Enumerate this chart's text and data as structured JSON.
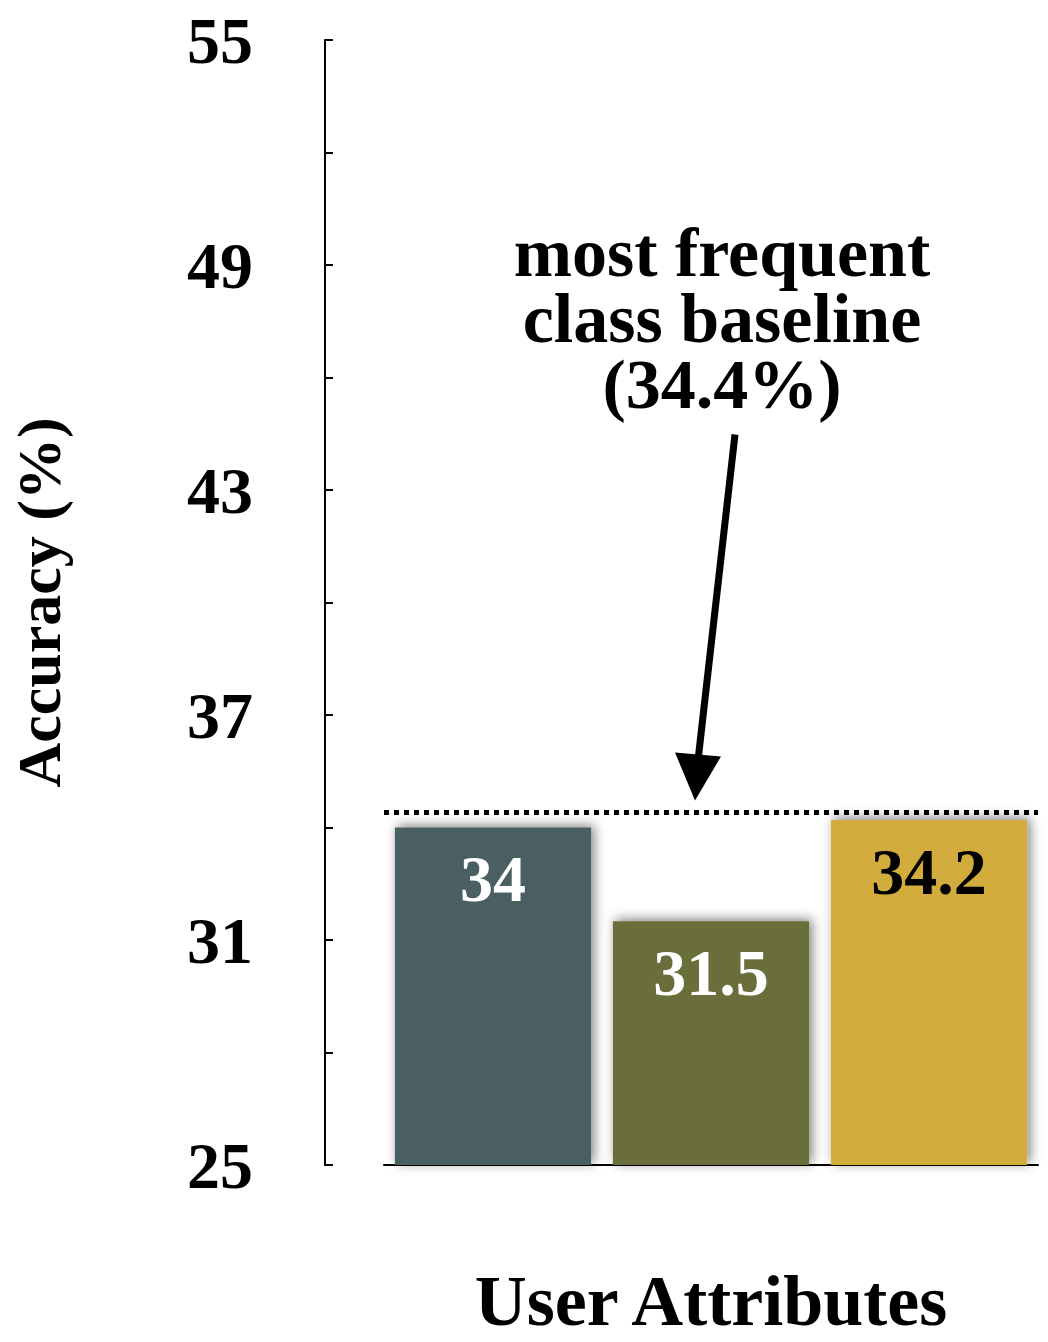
{
  "chart_data": {
    "type": "bar",
    "ylabel": "Accuracy (%)",
    "xlabel": "User Attributes",
    "categories": [
      null,
      null,
      null
    ],
    "values": [
      34,
      31.5,
      34.2
    ],
    "colors": [
      "#4a5f62",
      "#6b6e3a",
      "#d2ad3e"
    ],
    "ylim": [
      25,
      55
    ],
    "yticks": [
      25,
      31,
      37,
      43,
      49,
      55
    ],
    "data_labels": true,
    "grid": false,
    "ref_lines": [
      {
        "axis": "y",
        "value": 34.4,
        "label": "most frequent\nclass baseline\n(34.4%)",
        "line_style": "dotted",
        "color": "#000000"
      }
    ]
  }
}
